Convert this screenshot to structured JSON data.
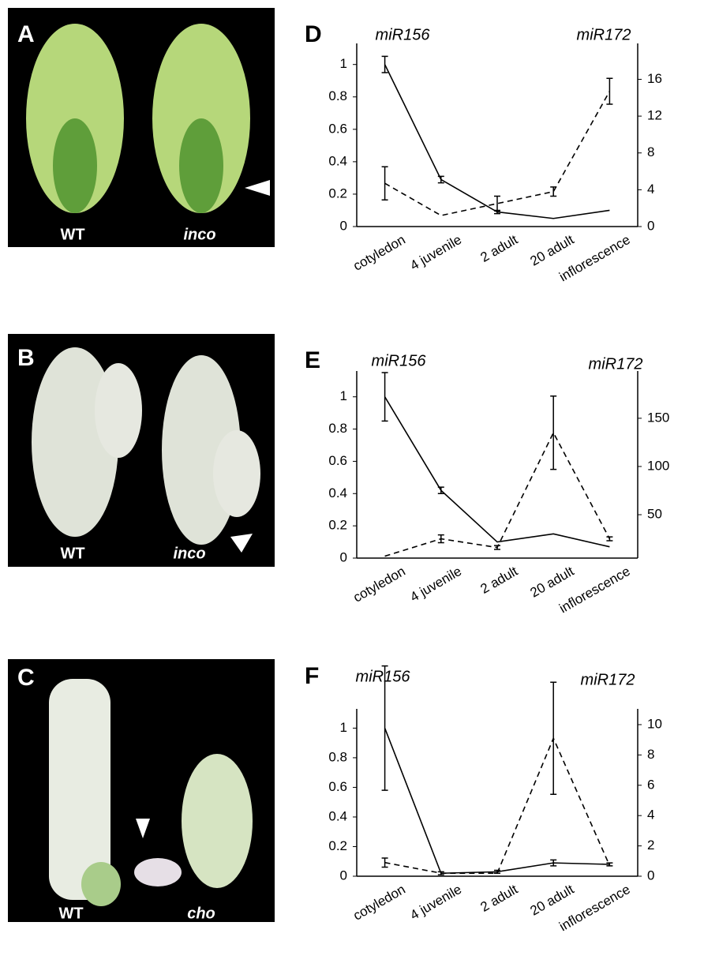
{
  "photo_panels": [
    {
      "label": "A",
      "labels": [
        "WT",
        "inco"
      ]
    },
    {
      "label": "B",
      "labels": [
        "WT",
        "inco"
      ]
    },
    {
      "label": "C",
      "labels": [
        "WT",
        "cho"
      ]
    }
  ],
  "chart_data": [
    {
      "type": "line",
      "label": "D",
      "categories": [
        "cotyledon",
        "4 juvenile",
        "2 adult",
        "20 adult",
        "inflorescence"
      ],
      "ylim": [
        0,
        1.13
      ],
      "yticks": [
        0,
        0.2,
        0.4,
        0.6,
        0.8,
        1
      ],
      "y2lim": [
        0,
        19.9
      ],
      "y2ticks": [
        0,
        4,
        8,
        12,
        16
      ],
      "series": [
        {
          "name": "miR156",
          "color": "#000000",
          "line_style": "solid",
          "values": [
            1.0,
            0.29,
            0.09,
            0.05,
            0.1
          ],
          "errors": [
            0.05,
            0.02,
            0.01,
            null,
            null
          ]
        },
        {
          "name": "miR172",
          "color": "#000000",
          "line_style": "dashed",
          "axis": "y2",
          "values": [
            4.7,
            1.2,
            2.5,
            3.8,
            14.7
          ],
          "errors": [
            1.8,
            null,
            0.8,
            0.5,
            1.4
          ]
        }
      ]
    },
    {
      "type": "line",
      "label": "E",
      "categories": [
        "cotyledon",
        "4 juvenile",
        "2 adult",
        "20 adult",
        "inflorescence"
      ],
      "ylim": [
        0,
        1.16
      ],
      "yticks": [
        0,
        0.2,
        0.4,
        0.6,
        0.8,
        1
      ],
      "y2lim": [
        5,
        199
      ],
      "y2ticks": [
        50,
        100,
        150
      ],
      "series": [
        {
          "name": "miR156",
          "color": "#000000",
          "line_style": "solid",
          "values": [
            1.0,
            0.42,
            0.1,
            0.15,
            0.07
          ],
          "errors": [
            0.15,
            0.02,
            null,
            null,
            null
          ]
        },
        {
          "name": "miR172",
          "color": "#000000",
          "line_style": "dashed",
          "axis": "y2",
          "values": [
            7,
            25,
            16,
            135,
            25
          ],
          "errors": [
            null,
            4,
            2,
            38,
            2
          ]
        }
      ]
    },
    {
      "type": "line",
      "label": "F",
      "categories": [
        "cotyledon",
        "4 juvenile",
        "2 adult",
        "20 adult",
        "inflorescence"
      ],
      "ylim": [
        0,
        1.13
      ],
      "yticks": [
        0,
        0.2,
        0.4,
        0.6,
        0.8,
        1
      ],
      "y2lim": [
        0,
        11.04
      ],
      "y2ticks": [
        0,
        2,
        4,
        6,
        8,
        10
      ],
      "series": [
        {
          "name": "miR156",
          "color": "#000000",
          "line_style": "solid",
          "values": [
            1.0,
            0.02,
            0.03,
            0.09,
            0.08
          ],
          "errors": [
            0.42,
            0.01,
            0.01,
            0.02,
            0.01
          ]
        },
        {
          "name": "miR172",
          "color": "#000000",
          "line_style": "dashed",
          "axis": "y2",
          "values": [
            0.9,
            0.2,
            0.2,
            9.1,
            0.7
          ],
          "errors": [
            0.3,
            null,
            null,
            3.7,
            null
          ]
        }
      ]
    }
  ]
}
